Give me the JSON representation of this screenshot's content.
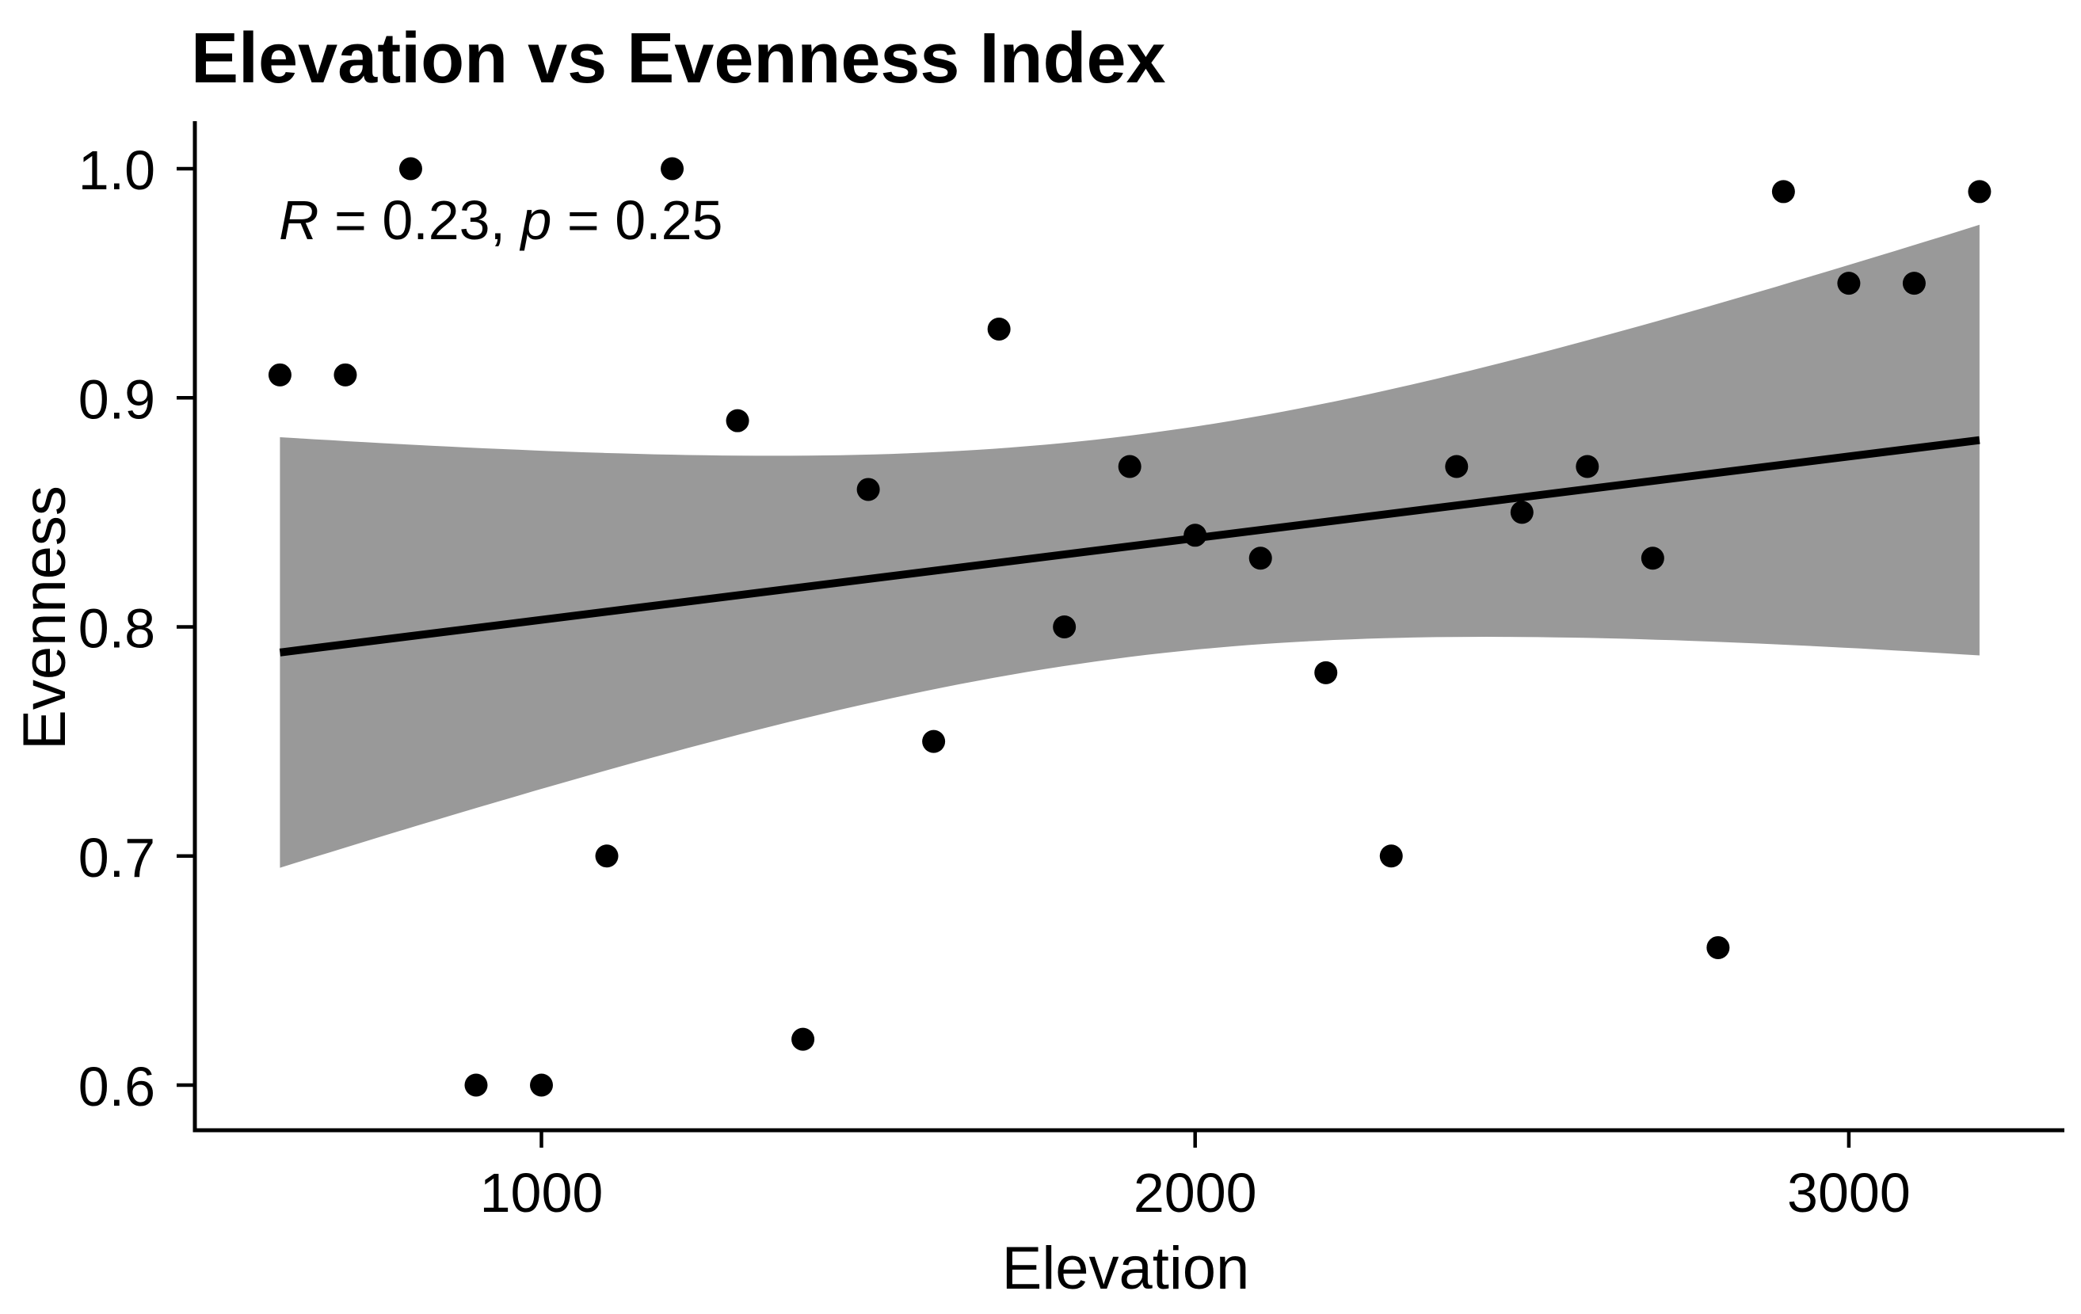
{
  "chart_data": {
    "type": "scatter",
    "title": "Elevation vs Evenness Index",
    "xlabel": "Elevation",
    "ylabel": "Evenness",
    "annotation": {
      "full_text": "R = 0.23, p = 0.25",
      "r_label": "R",
      "r_value": " = 0.23, ",
      "p_label": "p",
      "p_value": " = 0.25"
    },
    "x_ticks": {
      "values": [
        1000,
        2000,
        3000
      ],
      "labels": [
        "1000",
        "2000",
        "3000"
      ]
    },
    "y_ticks": {
      "values": [
        1.0,
        0.9,
        0.8,
        0.7,
        0.6
      ],
      "labels": [
        "1.0",
        "0.9",
        "0.8",
        "0.7",
        "0.6"
      ]
    },
    "xlim": [
      600,
      3200
    ],
    "ylim": [
      0.58,
      1.02
    ],
    "grid": false,
    "legend": false,
    "stats": {
      "R": 0.23,
      "p": 0.25
    },
    "regression": {
      "type": "linear-ols",
      "ci_level": 0.95
    },
    "colors": {
      "point": "#000000",
      "line": "#000000",
      "band": "#999999",
      "axis": "#000000",
      "text": "#000000",
      "background": "#ffffff"
    },
    "points": [
      [
        600,
        0.91
      ],
      [
        700,
        0.91
      ],
      [
        800,
        1.0
      ],
      [
        900,
        0.6
      ],
      [
        1000,
        0.6
      ],
      [
        1100,
        0.7
      ],
      [
        1200,
        1.0
      ],
      [
        1300,
        0.89
      ],
      [
        1400,
        0.62
      ],
      [
        1500,
        0.86
      ],
      [
        1600,
        0.75
      ],
      [
        1700,
        0.93
      ],
      [
        1800,
        0.8
      ],
      [
        1900,
        0.87
      ],
      [
        2000,
        0.84
      ],
      [
        2100,
        0.83
      ],
      [
        2200,
        0.78
      ],
      [
        2300,
        0.7
      ],
      [
        2400,
        0.87
      ],
      [
        2500,
        0.85
      ],
      [
        2600,
        0.87
      ],
      [
        2700,
        0.83
      ],
      [
        2800,
        0.66
      ],
      [
        2900,
        0.99
      ],
      [
        3000,
        0.95
      ],
      [
        3100,
        0.95
      ],
      [
        3200,
        0.99
      ]
    ]
  }
}
